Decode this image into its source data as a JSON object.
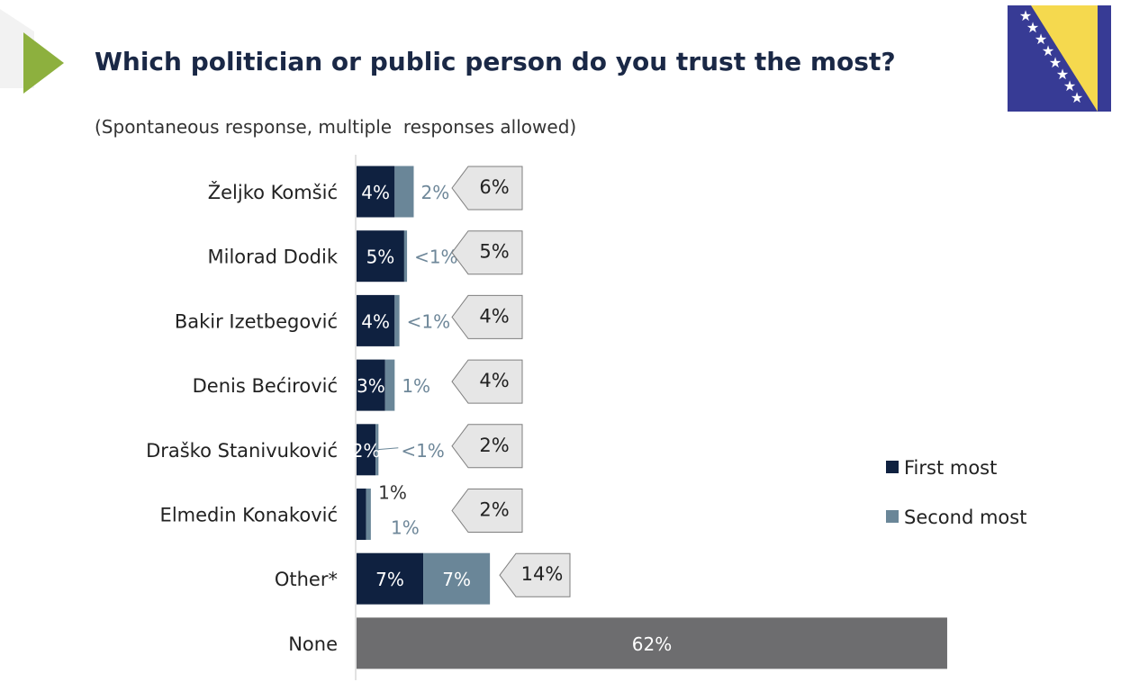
{
  "header": {
    "title": "Which politician or public person do you trust the most?",
    "subtitle": "(Spontaneous response, multiple  responses allowed)"
  },
  "colors": {
    "first": "#0f2140",
    "second": "#6a8698",
    "none": "#6d6d6f",
    "callout_fill": "#e6e6e6",
    "callout_stroke": "#7f7f7f",
    "accent_arrow": "#8db03e",
    "flag_blue": "#373b95",
    "flag_yellow": "#f5d94e"
  },
  "icons": {
    "play": "play-triangle-icon",
    "flag": "bosnia-flag-icon"
  },
  "chart_data": {
    "type": "bar",
    "orientation": "horizontal",
    "stacked": true,
    "categories": [
      "Željko Komšić",
      "Milorad Dodik",
      "Bakir Izetbegović",
      "Denis Bećirović",
      "Draško Stanivuković",
      "Elmedin Konaković",
      "Other*",
      "None"
    ],
    "series": [
      {
        "name": "First most",
        "values": [
          4,
          5,
          4,
          3,
          2,
          1,
          7,
          62
        ],
        "labels": [
          "4%",
          "5%",
          "4%",
          "3%",
          "2%",
          "1%",
          "7%",
          "62%"
        ]
      },
      {
        "name": "Second most",
        "values": [
          2,
          0.3,
          0.5,
          1,
          0.3,
          0.5,
          7,
          null
        ],
        "labels": [
          "2%",
          "<1%",
          "<1%",
          "1%",
          "<1%",
          "1%",
          "7%",
          ""
        ]
      }
    ],
    "totals": [
      "6%",
      "5%",
      "4%",
      "4%",
      "2%",
      "2%",
      "14%",
      ""
    ],
    "legend": {
      "position": "right",
      "entries": [
        "First most",
        "Second most"
      ]
    },
    "xlim": [
      0,
      62
    ],
    "grid": false
  }
}
